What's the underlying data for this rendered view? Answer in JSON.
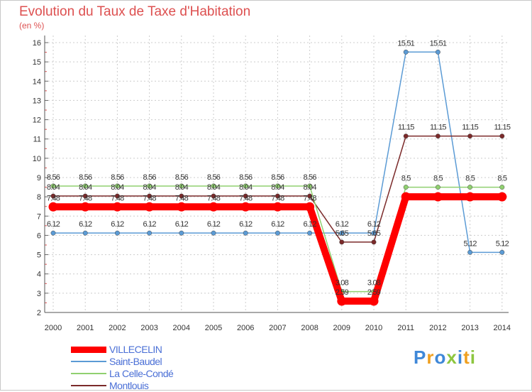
{
  "chart_data": {
    "type": "line",
    "title": "Evolution du Taux de Taxe d'Habitation",
    "ylabel": "(en %)",
    "categories": [
      "2000",
      "2001",
      "2002",
      "2003",
      "2004",
      "2005",
      "2006",
      "2007",
      "2008",
      "2009",
      "2010",
      "2011",
      "2012",
      "2013",
      "2014"
    ],
    "yticks": [
      2,
      3,
      4,
      5,
      6,
      7,
      8,
      9,
      10,
      11,
      12,
      13,
      14,
      15,
      16
    ],
    "ylim": [
      2,
      16
    ],
    "series": [
      {
        "name": "Saint-Baudel",
        "color": "#5b9bd5",
        "values": [
          6.12,
          6.12,
          6.12,
          6.12,
          6.12,
          6.12,
          6.12,
          6.12,
          6.12,
          6.12,
          6.12,
          15.51,
          15.51,
          5.12,
          5.12
        ],
        "labels": [
          "6.12",
          "6.12",
          "6.12",
          "6.12",
          "6.12",
          "6.12",
          "6.12",
          "6.12",
          "6.12",
          "6.12",
          "6.12",
          "15.51",
          "15.51",
          "5.12",
          "5.12"
        ]
      },
      {
        "name": "Montlouis",
        "color": "#7b2a2a",
        "values": [
          8.04,
          8.04,
          8.04,
          8.04,
          8.04,
          8.04,
          8.04,
          8.04,
          8.04,
          5.65,
          5.65,
          11.15,
          11.15,
          11.15,
          11.15
        ],
        "labels": [
          "8.04",
          "8.04",
          "8.04",
          "8.04",
          "8.04",
          "8.04",
          "8.04",
          "8.04",
          "8.04",
          "5.65",
          "5.65",
          "11.15",
          "11.15",
          "11.15",
          "11.15"
        ]
      },
      {
        "name": "La Celle-Condé",
        "color": "#90d070",
        "values": [
          8.56,
          8.56,
          8.56,
          8.56,
          8.56,
          8.56,
          8.56,
          8.56,
          8.56,
          3.08,
          3.08,
          8.5,
          8.5,
          8.5,
          8.5
        ],
        "labels": [
          "8.56",
          "8.56",
          "8.56",
          "8.56",
          "8.56",
          "8.56",
          "8.56",
          "8.56",
          "8.56",
          "3.08",
          "3.08",
          "8.5",
          "8.5",
          "8.5",
          "8.5"
        ]
      },
      {
        "name": "VILLECELIN",
        "color": "#ff0000",
        "values": [
          7.48,
          7.48,
          7.48,
          7.48,
          7.48,
          7.48,
          7.48,
          7.48,
          7.48,
          2.59,
          2.59,
          8,
          8,
          8,
          8
        ],
        "labels": [
          "7.48",
          "7.48",
          "7.48",
          "7.48",
          "7.48",
          "7.48",
          "7.48",
          "7.48",
          "7.48",
          "2.59",
          "2.59",
          "",
          "",
          "",
          ""
        ]
      }
    ]
  },
  "legend": [
    {
      "label": "VILLECELIN",
      "color": "#ff0000",
      "weight": 9
    },
    {
      "label": "Saint-Baudel",
      "color": "#5b9bd5",
      "weight": 2
    },
    {
      "label": "La Celle-Condé",
      "color": "#90d070",
      "weight": 2
    },
    {
      "label": "Montlouis",
      "color": "#7b2a2a",
      "weight": 2
    }
  ],
  "logo": {
    "text": "Proxiti",
    "colors": [
      "#3f88d8",
      "#f0a020",
      "#3f88d8",
      "#8dc63f",
      "#3f88d8",
      "#f0a020",
      "#8dc63f"
    ]
  }
}
